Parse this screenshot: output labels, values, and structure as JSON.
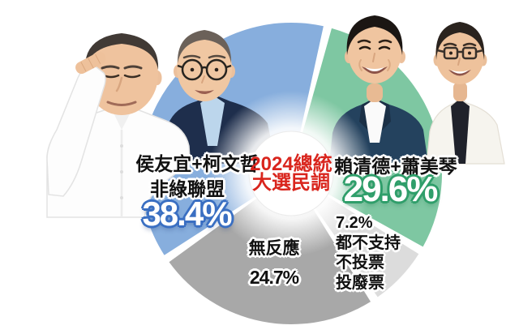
{
  "infographic": {
    "title": {
      "line1": "2024總統",
      "line2": "大選民調"
    },
    "labels": {
      "left": {
        "names": "侯友宜+柯文哲",
        "coalition": "非綠聯盟",
        "pct": "38.4%"
      },
      "right": {
        "names": "賴清德+蕭美琴",
        "pct": "29.6%"
      },
      "no_response": {
        "name": "無反應",
        "pct": "24.7%"
      },
      "other": {
        "pct": "7.2%",
        "line1": "都不支持",
        "line2": "不投票",
        "line3": "投廢票"
      }
    },
    "colors": {
      "accent_red": "#d9251d",
      "blue_segment": "#87aedd",
      "green_segment": "#7ec7a2",
      "gray_segment": "#a8a8a8",
      "light_gray_segment": "#dcdcdc",
      "pct_outline_blue": "#3a6fc2",
      "pct_outline_green": "#2f9e6a"
    },
    "people": [
      {
        "name": "侯友宜"
      },
      {
        "name": "柯文哲"
      },
      {
        "name": "賴清德"
      },
      {
        "name": "蕭美琴"
      }
    ]
  },
  "chart_data": {
    "type": "pie",
    "title": "2024總統大選民調",
    "start_angle_deg": 14,
    "direction": "clockwise",
    "total_pct": 99.9,
    "segments": [
      {
        "name": "lai-hsiao",
        "label": "賴清德+蕭美琴",
        "value": 29.6,
        "color": "#7ec7a2"
      },
      {
        "name": "protest-vote",
        "label": "都不支持/不投票/投廢票",
        "value": 7.2,
        "color": "#dcdcdc"
      },
      {
        "name": "no-response",
        "label": "無反應",
        "value": 24.7,
        "color": "#a8a8a8"
      },
      {
        "name": "hou-ko",
        "label": "侯友宜+柯文哲 非綠聯盟",
        "value": 38.4,
        "color": "#87aedd"
      }
    ]
  }
}
